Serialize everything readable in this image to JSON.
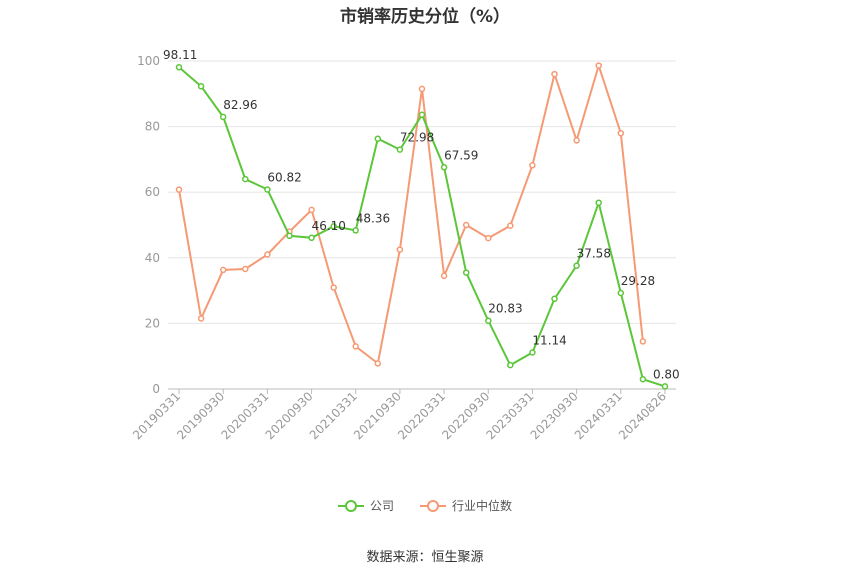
{
  "chart_data": {
    "type": "line",
    "title": "市销率历史分位（%）",
    "source": "数据来源：恒生聚源",
    "ylim": [
      0,
      100
    ],
    "yticks": [
      "0",
      "20",
      "40",
      "60",
      "80",
      "100"
    ],
    "grid": true,
    "legend_position": "bottom",
    "x": [
      "20190331",
      "20190630",
      "20190930",
      "20191231",
      "20200331",
      "20200630",
      "20200930",
      "20201231",
      "20210331",
      "20210630",
      "20210930",
      "20211231",
      "20220331",
      "20220630",
      "20220930",
      "20221231",
      "20230331",
      "20230630",
      "20230930",
      "20231231",
      "20240331",
      "20240630",
      "20240826"
    ],
    "x_tick_labels": [
      "20190331",
      "20190930",
      "20200331",
      "20200930",
      "20210331",
      "20210930",
      "20220331",
      "20220930",
      "20230331",
      "20230930",
      "20240331",
      "20240826"
    ],
    "series": [
      {
        "name": "公司",
        "color": "#5cc63a",
        "values": [
          98.11,
          92.3,
          82.96,
          64.0,
          60.82,
          46.7,
          46.1,
          49.6,
          48.36,
          76.3,
          72.98,
          83.6,
          67.59,
          35.5,
          20.83,
          7.3,
          11.14,
          27.5,
          37.58,
          56.8,
          29.28,
          3.0,
          0.8
        ],
        "labels": [
          "98.11",
          null,
          "82.96",
          null,
          "60.82",
          null,
          "46.10",
          null,
          "48.36",
          null,
          "72.98",
          null,
          "67.59",
          null,
          "20.83",
          null,
          "11.14",
          null,
          "37.58",
          null,
          "29.28",
          null,
          "0.80"
        ]
      },
      {
        "name": "行业中位数",
        "color": "#f59a74",
        "values": [
          60.8,
          21.5,
          36.3,
          36.6,
          41.0,
          48.0,
          54.6,
          30.9,
          13.0,
          7.8,
          42.5,
          91.5,
          34.5,
          50.0,
          46.0,
          49.8,
          68.2,
          96.0,
          75.8,
          98.6,
          78.0,
          14.5,
          null
        ]
      }
    ]
  }
}
